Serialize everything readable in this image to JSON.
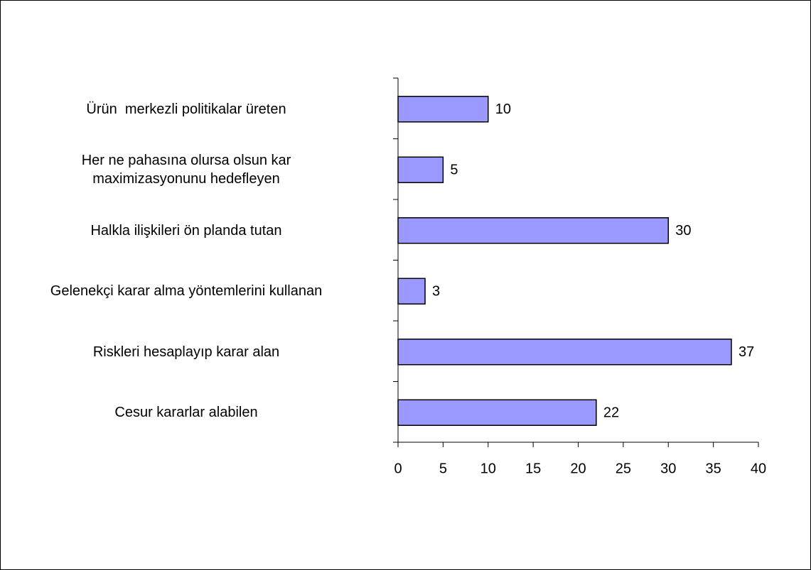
{
  "chart_data": {
    "type": "bar",
    "orientation": "horizontal",
    "categories": [
      "Ürün  merkezli politikalar üreten",
      "Her ne pahasına olursa olsun kar\nmaximizasyonunu hedefleyen",
      "Halkla ilişkileri ön planda tutan",
      "Gelenekçi karar alma yöntemlerini kullanan",
      "Riskleri hesaplayıp karar alan",
      "Cesur kararlar alabilen"
    ],
    "values": [
      10,
      5,
      30,
      3,
      37,
      22
    ],
    "color": "#9999ff",
    "xlim": [
      0,
      40
    ],
    "xticks": [
      0,
      5,
      10,
      15,
      20,
      25,
      30,
      35,
      40
    ]
  }
}
